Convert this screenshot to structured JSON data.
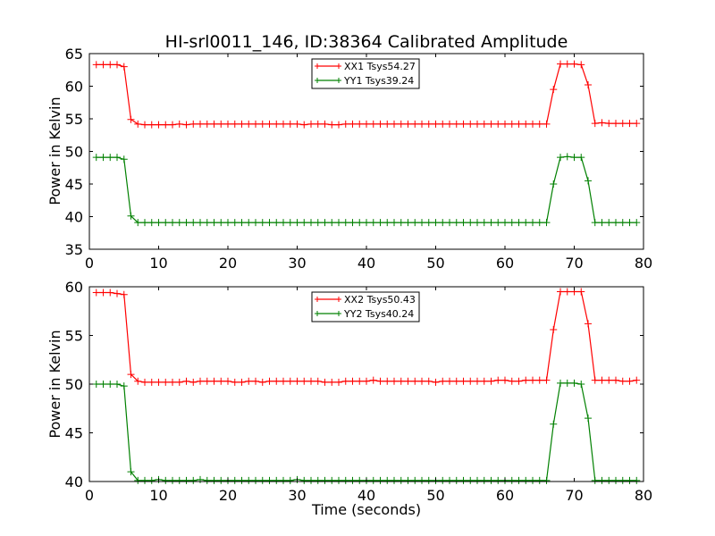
{
  "chart_data": [
    {
      "type": "line",
      "title": "HI-srl0011_146, ID:38364 Calibrated Amplitude",
      "xlabel": "",
      "ylabel": "Power in Kelvin",
      "xlim": [
        0,
        80
      ],
      "ylim": [
        35,
        65
      ],
      "xticks": [
        0,
        10,
        20,
        30,
        40,
        50,
        60,
        70,
        80
      ],
      "yticks": [
        35,
        40,
        45,
        50,
        55,
        60,
        65
      ],
      "grid": false,
      "legend_position": "top-center",
      "series": [
        {
          "name": "XX1 Tsys54.27",
          "color": "#ff0000",
          "marker": "+",
          "x": [
            1,
            2,
            3,
            4,
            5,
            6,
            7,
            8,
            9,
            10,
            11,
            12,
            13,
            14,
            15,
            16,
            17,
            18,
            19,
            20,
            21,
            22,
            23,
            24,
            25,
            26,
            27,
            28,
            29,
            30,
            31,
            32,
            33,
            34,
            35,
            36,
            37,
            38,
            39,
            40,
            41,
            42,
            43,
            44,
            45,
            46,
            47,
            48,
            49,
            50,
            51,
            52,
            53,
            54,
            55,
            56,
            57,
            58,
            59,
            60,
            61,
            62,
            63,
            64,
            65,
            66,
            67,
            68,
            69,
            70,
            71,
            72,
            73,
            74,
            75,
            76,
            77,
            78,
            79
          ],
          "y": [
            63.3,
            63.3,
            63.3,
            63.3,
            63.0,
            54.9,
            54.2,
            54.1,
            54.1,
            54.1,
            54.1,
            54.1,
            54.2,
            54.1,
            54.2,
            54.2,
            54.2,
            54.2,
            54.2,
            54.2,
            54.2,
            54.2,
            54.2,
            54.2,
            54.2,
            54.2,
            54.2,
            54.2,
            54.2,
            54.2,
            54.1,
            54.2,
            54.2,
            54.2,
            54.1,
            54.1,
            54.2,
            54.2,
            54.2,
            54.2,
            54.2,
            54.2,
            54.2,
            54.2,
            54.2,
            54.2,
            54.2,
            54.2,
            54.2,
            54.2,
            54.2,
            54.2,
            54.2,
            54.2,
            54.2,
            54.2,
            54.2,
            54.2,
            54.2,
            54.2,
            54.2,
            54.2,
            54.2,
            54.2,
            54.2,
            54.2,
            59.5,
            63.4,
            63.4,
            63.4,
            63.3,
            60.2,
            54.3,
            54.4,
            54.3,
            54.3,
            54.3,
            54.3,
            54.3
          ]
        },
        {
          "name": "YY1 Tsys39.24",
          "color": "#008000",
          "marker": "+",
          "x": [
            1,
            2,
            3,
            4,
            5,
            6,
            7,
            8,
            9,
            10,
            11,
            12,
            13,
            14,
            15,
            16,
            17,
            18,
            19,
            20,
            21,
            22,
            23,
            24,
            25,
            26,
            27,
            28,
            29,
            30,
            31,
            32,
            33,
            34,
            35,
            36,
            37,
            38,
            39,
            40,
            41,
            42,
            43,
            44,
            45,
            46,
            47,
            48,
            49,
            50,
            51,
            52,
            53,
            54,
            55,
            56,
            57,
            58,
            59,
            60,
            61,
            62,
            63,
            64,
            65,
            66,
            67,
            68,
            69,
            70,
            71,
            72,
            73,
            74,
            75,
            76,
            77,
            78,
            79
          ],
          "y": [
            49.1,
            49.1,
            49.1,
            49.1,
            48.8,
            40.1,
            39.1,
            39.1,
            39.1,
            39.1,
            39.1,
            39.1,
            39.1,
            39.1,
            39.1,
            39.1,
            39.1,
            39.1,
            39.1,
            39.1,
            39.1,
            39.1,
            39.1,
            39.1,
            39.1,
            39.1,
            39.1,
            39.1,
            39.1,
            39.1,
            39.1,
            39.1,
            39.1,
            39.1,
            39.1,
            39.1,
            39.1,
            39.1,
            39.1,
            39.1,
            39.1,
            39.1,
            39.1,
            39.1,
            39.1,
            39.1,
            39.1,
            39.1,
            39.1,
            39.1,
            39.1,
            39.1,
            39.1,
            39.1,
            39.1,
            39.1,
            39.1,
            39.1,
            39.1,
            39.1,
            39.1,
            39.1,
            39.1,
            39.1,
            39.1,
            39.1,
            45.0,
            49.1,
            49.2,
            49.1,
            49.1,
            45.5,
            39.1,
            39.1,
            39.1,
            39.1,
            39.1,
            39.1,
            39.1
          ]
        }
      ]
    },
    {
      "type": "line",
      "title": "",
      "xlabel": "Time (seconds)",
      "ylabel": "Power in Kelvin",
      "xlim": [
        0,
        80
      ],
      "ylim": [
        40,
        60
      ],
      "xticks": [
        0,
        10,
        20,
        30,
        40,
        50,
        60,
        70,
        80
      ],
      "yticks": [
        40,
        45,
        50,
        55,
        60
      ],
      "grid": false,
      "legend_position": "top-center",
      "series": [
        {
          "name": "XX2 Tsys50.43",
          "color": "#ff0000",
          "marker": "+",
          "x": [
            1,
            2,
            3,
            4,
            5,
            6,
            7,
            8,
            9,
            10,
            11,
            12,
            13,
            14,
            15,
            16,
            17,
            18,
            19,
            20,
            21,
            22,
            23,
            24,
            25,
            26,
            27,
            28,
            29,
            30,
            31,
            32,
            33,
            34,
            35,
            36,
            37,
            38,
            39,
            40,
            41,
            42,
            43,
            44,
            45,
            46,
            47,
            48,
            49,
            50,
            51,
            52,
            53,
            54,
            55,
            56,
            57,
            58,
            59,
            60,
            61,
            62,
            63,
            64,
            65,
            66,
            67,
            68,
            69,
            70,
            71,
            72,
            73,
            74,
            75,
            76,
            77,
            78,
            79
          ],
          "y": [
            59.4,
            59.4,
            59.4,
            59.3,
            59.2,
            51.0,
            50.3,
            50.2,
            50.2,
            50.2,
            50.2,
            50.2,
            50.2,
            50.3,
            50.2,
            50.3,
            50.3,
            50.3,
            50.3,
            50.3,
            50.2,
            50.2,
            50.3,
            50.3,
            50.2,
            50.3,
            50.3,
            50.3,
            50.3,
            50.3,
            50.3,
            50.3,
            50.3,
            50.2,
            50.2,
            50.2,
            50.3,
            50.3,
            50.3,
            50.3,
            50.4,
            50.3,
            50.3,
            50.3,
            50.3,
            50.3,
            50.3,
            50.3,
            50.3,
            50.2,
            50.3,
            50.3,
            50.3,
            50.3,
            50.3,
            50.3,
            50.3,
            50.3,
            50.4,
            50.4,
            50.3,
            50.3,
            50.4,
            50.4,
            50.4,
            50.4,
            55.6,
            59.5,
            59.5,
            59.5,
            59.5,
            56.2,
            50.4,
            50.4,
            50.4,
            50.4,
            50.3,
            50.3,
            50.4
          ]
        },
        {
          "name": "YY2 Tsys40.24",
          "color": "#008000",
          "marker": "+",
          "x": [
            1,
            2,
            3,
            4,
            5,
            6,
            7,
            8,
            9,
            10,
            11,
            12,
            13,
            14,
            15,
            16,
            17,
            18,
            19,
            20,
            21,
            22,
            23,
            24,
            25,
            26,
            27,
            28,
            29,
            30,
            31,
            32,
            33,
            34,
            35,
            36,
            37,
            38,
            39,
            40,
            41,
            42,
            43,
            44,
            45,
            46,
            47,
            48,
            49,
            50,
            51,
            52,
            53,
            54,
            55,
            56,
            57,
            58,
            59,
            60,
            61,
            62,
            63,
            64,
            65,
            66,
            67,
            68,
            69,
            70,
            71,
            72,
            73,
            74,
            75,
            76,
            77,
            78,
            79
          ],
          "y": [
            50.0,
            50.0,
            50.0,
            50.0,
            49.8,
            41.0,
            40.1,
            40.1,
            40.1,
            40.2,
            40.1,
            40.1,
            40.1,
            40.1,
            40.1,
            40.2,
            40.1,
            40.1,
            40.1,
            40.1,
            40.1,
            40.1,
            40.1,
            40.1,
            40.1,
            40.1,
            40.1,
            40.1,
            40.1,
            40.2,
            40.1,
            40.1,
            40.1,
            40.1,
            40.1,
            40.1,
            40.1,
            40.1,
            40.1,
            40.1,
            40.1,
            40.1,
            40.1,
            40.1,
            40.1,
            40.1,
            40.1,
            40.1,
            40.1,
            40.1,
            40.1,
            40.1,
            40.1,
            40.1,
            40.1,
            40.1,
            40.1,
            40.1,
            40.1,
            40.1,
            40.1,
            40.1,
            40.1,
            40.1,
            40.1,
            40.1,
            45.9,
            50.1,
            50.1,
            50.1,
            50.0,
            46.5,
            40.1,
            40.1,
            40.1,
            40.1,
            40.1,
            40.1,
            40.1
          ]
        }
      ]
    }
  ]
}
